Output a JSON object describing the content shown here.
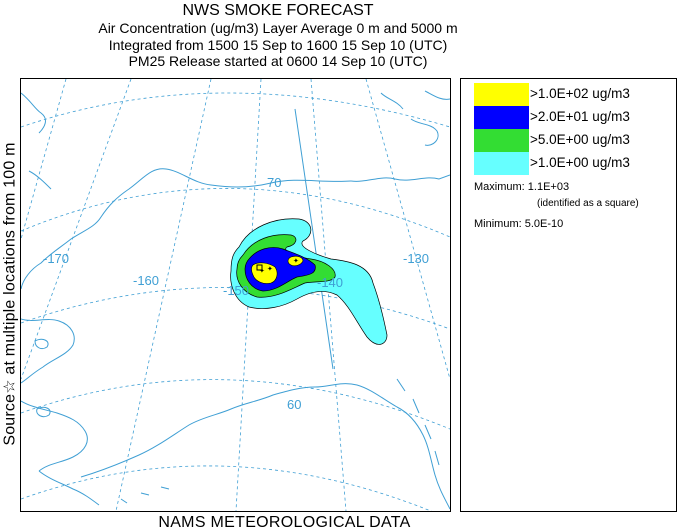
{
  "header": {
    "title": "NWS SMOKE FORECAST",
    "line1": "Air Concentration (ug/m3) Layer Average    0 m and  5000 m",
    "line2": "Integrated from 1500 15 Sep to 1600 15 Sep 10 (UTC)",
    "line3": "PM25 Release started at 0600 14 Sep 10 (UTC)"
  },
  "side_label": "Source☆  at multiple locations    from   100 m",
  "bottom_label": "NAMS METEOROLOGICAL DATA",
  "map": {
    "longitude_labels": [
      "-170",
      "-160",
      "-150",
      "-140",
      "-130"
    ],
    "latitude_labels": [
      "70",
      "60"
    ],
    "colors": {
      "coast": "#3f9fd4",
      "grid": "#3f9fd4",
      "contour_lt1": "#66ffff",
      "contour_gt5": "#33dd33",
      "contour_gt20": "#0000ff",
      "contour_gt100": "#ffff00"
    }
  },
  "legend": {
    "items": [
      {
        "label": ">1.0E+02 ug/m3",
        "color": "#ffff00"
      },
      {
        "label": ">2.0E+01 ug/m3",
        "color": "#0000ff"
      },
      {
        "label": ">5.0E+00 ug/m3",
        "color": "#33dd33"
      },
      {
        "label": ">1.0E+00 ug/m3",
        "color": "#66ffff"
      }
    ],
    "maximum": "Maximum: 1.1E+03",
    "maximum_note": "(identified as a square)",
    "minimum": "Minimum: 5.0E-10"
  }
}
